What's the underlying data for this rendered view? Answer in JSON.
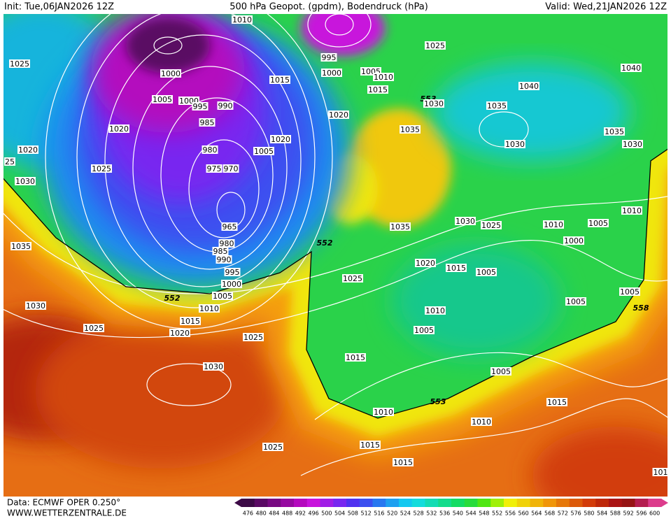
{
  "header": {
    "init": "Init: Tue,06JAN2026 12Z",
    "title": "500 hPa Geopot. (gpdm), Bodendruck (hPa)",
    "valid": "Valid: Wed,21JAN2026 12Z"
  },
  "footer": {
    "source": "Data: ECMWF OPER 0.250°",
    "website": "WWW.WETTERZENTRALE.DE"
  },
  "isobar_labels": [
    "1010",
    "1025",
    "1000",
    "1005",
    "1000",
    "995",
    "990",
    "985",
    "1020",
    "1020",
    "980",
    "975",
    "970",
    "1025",
    "25",
    "1030",
    "1005",
    "1020",
    "995",
    "1000",
    "1005",
    "1010",
    "1015",
    "1015",
    "1020",
    "1025",
    "553",
    "1030",
    "1035",
    "1035",
    "1040",
    "1040",
    "1035",
    "1030",
    "1030",
    "965",
    "980",
    "985",
    "990",
    "995",
    "1000",
    "1005",
    "1010",
    "1015",
    "1020",
    "1025",
    "552",
    "552",
    "1035",
    "1030",
    "1025",
    "1030",
    "1025",
    "1035",
    "1030",
    "1025",
    "1010",
    "1005",
    "1010",
    "1000",
    "1020",
    "1015",
    "1005",
    "1025",
    "1010",
    "1005",
    "1005",
    "1005",
    "558",
    "1015",
    "1005",
    "553",
    "1010",
    "1010",
    "1015",
    "1015",
    "1015",
    "101"
  ],
  "colorbar": {
    "labels": [
      "476",
      "480",
      "484",
      "488",
      "492",
      "496",
      "500",
      "504",
      "508",
      "512",
      "516",
      "520",
      "524",
      "528",
      "532",
      "536",
      "540",
      "544",
      "548",
      "552",
      "556",
      "560",
      "564",
      "568",
      "572",
      "576",
      "580",
      "584",
      "588",
      "592",
      "596",
      "600"
    ],
    "colors": [
      "#3c0a46",
      "#5a0a64",
      "#780a82",
      "#960aa0",
      "#b40abe",
      "#c814dc",
      "#a01ee6",
      "#7828f0",
      "#5032f0",
      "#3c50f0",
      "#2878f0",
      "#1ea0f0",
      "#14c8f0",
      "#14dcdc",
      "#14dcb4",
      "#14dc8c",
      "#14dc64",
      "#28dc3c",
      "#50e614",
      "#a0f00a",
      "#f0f00a",
      "#f0d20a",
      "#f0b40a",
      "#f0960a",
      "#e6780a",
      "#dc5a0a",
      "#d23c0a",
      "#be280a",
      "#aa1414",
      "#961414",
      "#b41e50",
      "#dc3c8c"
    ]
  }
}
